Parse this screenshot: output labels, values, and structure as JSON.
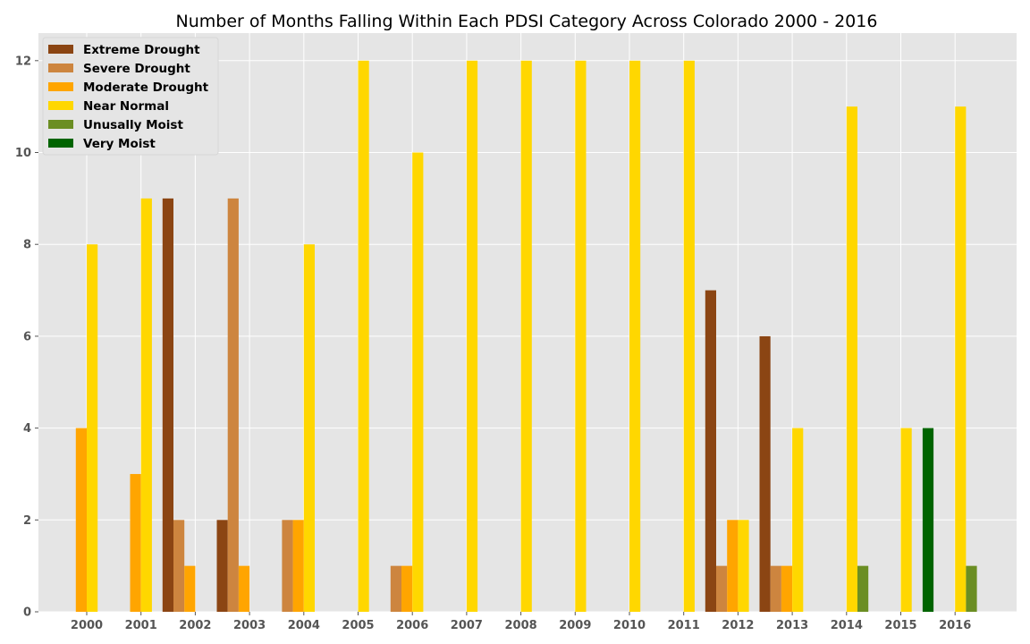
{
  "chart_data": {
    "type": "bar",
    "title": "Number of Months Falling Within Each PDSI Category Across Colorado 2000 - 2016",
    "xlabel": "",
    "ylabel": "",
    "ylim": [
      0,
      12.6
    ],
    "yticks": [
      0,
      2,
      4,
      6,
      8,
      10,
      12
    ],
    "grid": true,
    "legend_position": "top-left",
    "categories": [
      "2000",
      "2001",
      "2002",
      "2003",
      "2004",
      "2005",
      "2006",
      "2007",
      "2008",
      "2009",
      "2010",
      "2011",
      "2012",
      "2013",
      "2014",
      "2015",
      "2016"
    ],
    "series": [
      {
        "name": "Extreme Drought",
        "color": "#8B4513",
        "values": [
          0,
          0,
          9,
          2,
          0,
          0,
          0,
          0,
          0,
          0,
          0,
          0,
          7,
          6,
          0,
          0,
          0
        ]
      },
      {
        "name": "Severe Drought",
        "color": "#CD853F",
        "values": [
          0,
          0,
          2,
          9,
          2,
          0,
          1,
          0,
          0,
          0,
          0,
          0,
          1,
          1,
          0,
          0,
          0
        ]
      },
      {
        "name": "Moderate Drought",
        "color": "#FFA500",
        "values": [
          4,
          3,
          1,
          1,
          2,
          0,
          1,
          0,
          0,
          0,
          0,
          0,
          2,
          1,
          0,
          0,
          0
        ]
      },
      {
        "name": "Near Normal",
        "color": "#FFD700",
        "values": [
          8,
          9,
          0,
          0,
          8,
          12,
          10,
          12,
          12,
          12,
          12,
          12,
          2,
          4,
          11,
          4,
          11
        ]
      },
      {
        "name": "Unusally Moist",
        "color": "#6B8E23",
        "values": [
          0,
          0,
          0,
          0,
          0,
          0,
          0,
          0,
          0,
          0,
          0,
          0,
          0,
          0,
          1,
          0,
          1
        ]
      },
      {
        "name": "Very Moist",
        "color": "#006400",
        "values": [
          0,
          0,
          0,
          0,
          0,
          0,
          0,
          0,
          0,
          0,
          0,
          0,
          0,
          0,
          0,
          4,
          0
        ]
      }
    ]
  }
}
